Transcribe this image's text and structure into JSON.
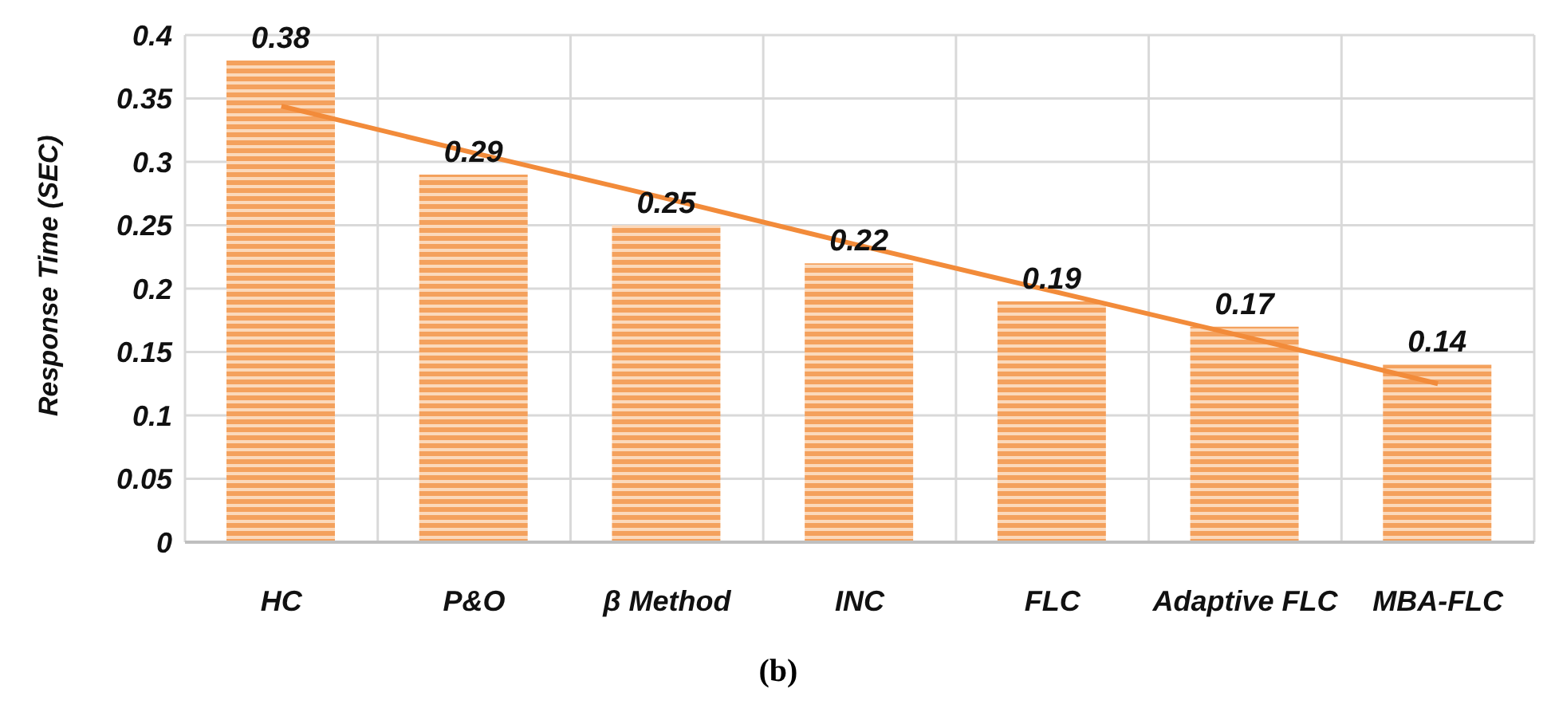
{
  "chart_data": {
    "type": "bar",
    "ylabel": "Response Time (SEC)",
    "categories": [
      "HC",
      "P&O",
      "β Method",
      "INC",
      "FLC",
      "Adaptive FLC",
      "MBA-FLC"
    ],
    "series": [
      {
        "color": "#f4a15d",
        "values": [
          0.38,
          0.29,
          0.25,
          0.22,
          0.19,
          0.17,
          0.14
        ],
        "value_labels": [
          "0.38",
          "0.29",
          "0.25",
          "0.22",
          "0.19",
          "0.17",
          "0.14"
        ]
      },
      {
        "type": "line",
        "color": "#f28b3a",
        "values": [
          0.344,
          0.307,
          0.271,
          0.234,
          0.198,
          0.162,
          0.125
        ]
      }
    ],
    "ylim": [
      0,
      0.4
    ],
    "yticks": [
      0,
      0.05,
      0.1,
      0.15,
      0.2,
      0.25,
      0.3,
      0.35,
      0.4
    ],
    "grid": true,
    "legend": false,
    "marker": "none",
    "annotations": [
      "(b)"
    ]
  }
}
